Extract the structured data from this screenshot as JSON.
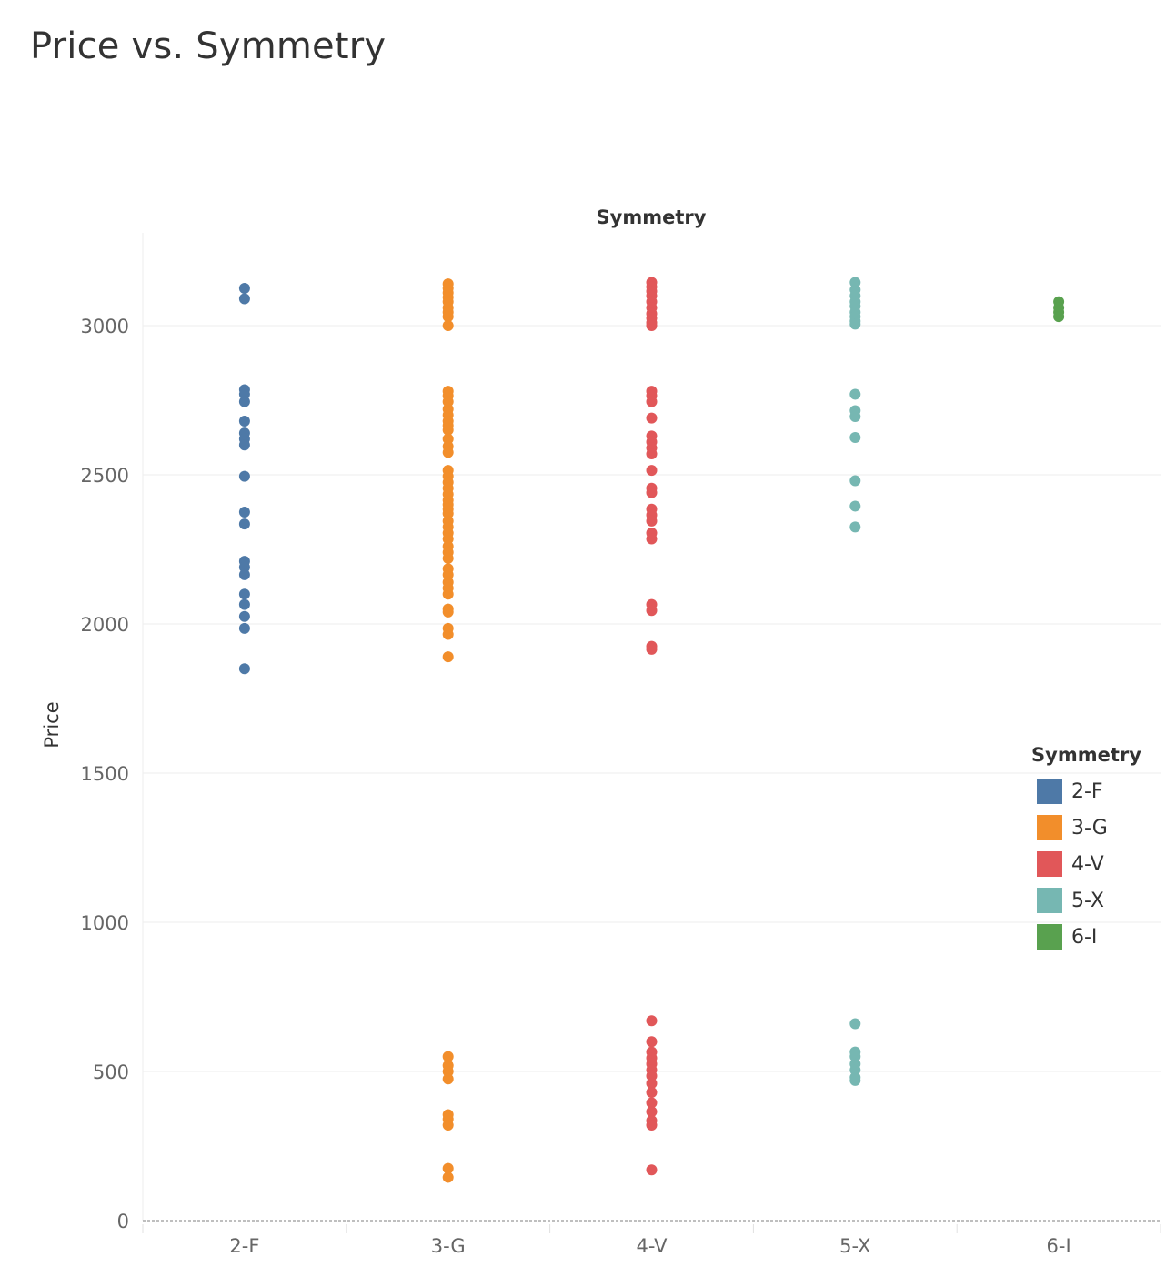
{
  "title": "Price vs. Symmetry",
  "chart_data": {
    "type": "scatter",
    "title": "Price vs. Symmetry",
    "column_header": "Symmetry",
    "xlabel": "",
    "ylabel": "Price",
    "ylim": [
      0,
      3250
    ],
    "yticks": [
      0,
      500,
      1000,
      1500,
      2000,
      2500,
      3000
    ],
    "grid": true,
    "legend": {
      "title": "Symmetry",
      "placement": "right"
    },
    "categories": [
      "2-F",
      "3-G",
      "4-V",
      "5-X",
      "6-I"
    ],
    "series": [
      {
        "name": "2-F",
        "color": "#4e79a7",
        "values": [
          3125,
          3090,
          2785,
          2770,
          2745,
          2680,
          2640,
          2620,
          2600,
          2495,
          2375,
          2335,
          2210,
          2190,
          2165,
          2100,
          2065,
          2025,
          1985,
          1850
        ]
      },
      {
        "name": "3-G",
        "color": "#f28e2b",
        "values": [
          3140,
          3125,
          3110,
          3095,
          3080,
          3060,
          3045,
          3030,
          3000,
          2780,
          2765,
          2745,
          2720,
          2700,
          2680,
          2665,
          2650,
          2620,
          2595,
          2575,
          2515,
          2495,
          2475,
          2455,
          2435,
          2415,
          2400,
          2385,
          2370,
          2345,
          2325,
          2305,
          2285,
          2260,
          2240,
          2220,
          2185,
          2165,
          2140,
          2120,
          2100,
          2050,
          2040,
          1985,
          1965,
          1890,
          550,
          520,
          500,
          475,
          355,
          340,
          320,
          175,
          145
        ]
      },
      {
        "name": "4-V",
        "color": "#e15759",
        "values": [
          3145,
          3130,
          3115,
          3100,
          3080,
          3060,
          3040,
          3025,
          3010,
          3000,
          2780,
          2765,
          2745,
          2690,
          2630,
          2610,
          2590,
          2570,
          2515,
          2455,
          2440,
          2385,
          2365,
          2345,
          2305,
          2285,
          2065,
          2045,
          1925,
          1915,
          670,
          600,
          565,
          545,
          525,
          505,
          485,
          460,
          430,
          395,
          365,
          335,
          320,
          170
        ]
      },
      {
        "name": "5-X",
        "color": "#76b7b2",
        "values": [
          3145,
          3120,
          3100,
          3080,
          3065,
          3045,
          3030,
          3015,
          3005,
          2770,
          2715,
          2695,
          2625,
          2480,
          2395,
          2325,
          660,
          565,
          550,
          525,
          505,
          480,
          470
        ]
      },
      {
        "name": "6-I",
        "color": "#59a14f",
        "values": [
          3080,
          3060,
          3045,
          3030
        ]
      }
    ]
  }
}
